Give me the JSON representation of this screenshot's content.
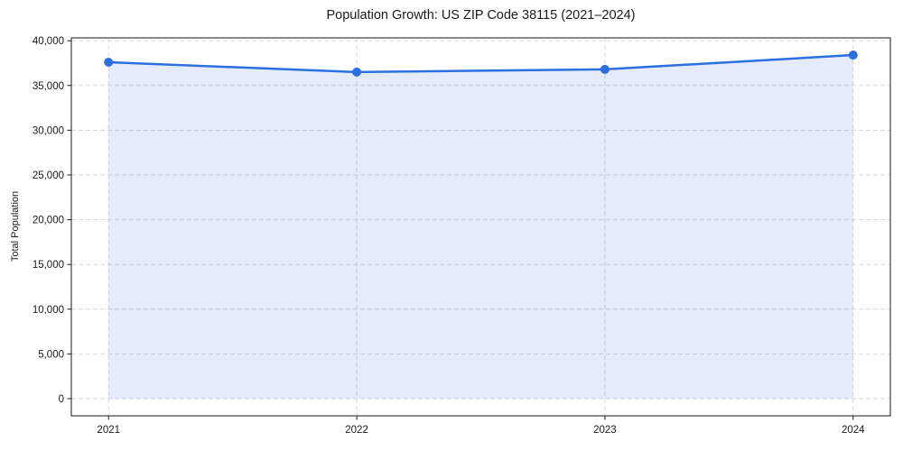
{
  "chart_data": {
    "type": "line",
    "title": "Population Growth: US ZIP Code 38115 (2021–2024)",
    "xlabel": "",
    "ylabel": "Total Population",
    "x": [
      "2021",
      "2022",
      "2023",
      "2024"
    ],
    "series": [
      {
        "name": "Total Population",
        "values": [
          37600,
          36500,
          36800,
          38400
        ]
      }
    ],
    "yticks": [
      0,
      5000,
      10000,
      15000,
      20000,
      25000,
      30000,
      35000,
      40000
    ],
    "ytick_labels": [
      "0",
      "5,000",
      "10,000",
      "15,000",
      "20,000",
      "25,000",
      "30,000",
      "35,000",
      "40,000"
    ],
    "ylim": [
      -1920,
      40320
    ],
    "x_margin_frac": 0.05,
    "grid": true,
    "grid_style": "dashed",
    "legend_position": "none",
    "area_fill_to_zero": true,
    "colors": {
      "line": "#2b6fe0",
      "marker": "#2b6fe0",
      "fill": "rgba(43,111,224,0.13)",
      "grid": "#d5d5d5",
      "axis": "#1a1a1a",
      "text": "#1a1a1a",
      "background": "#ffffff"
    }
  }
}
